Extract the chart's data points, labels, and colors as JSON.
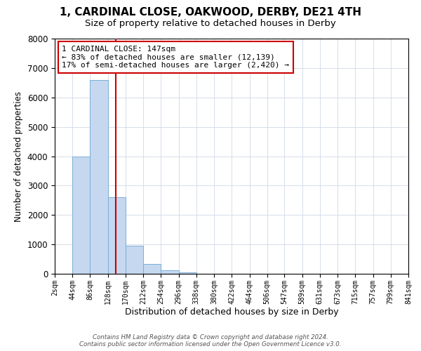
{
  "title": "1, CARDINAL CLOSE, OAKWOOD, DERBY, DE21 4TH",
  "subtitle": "Size of property relative to detached houses in Derby",
  "xlabel": "Distribution of detached houses by size in Derby",
  "ylabel": "Number of detached properties",
  "bin_edges": [
    2,
    44,
    86,
    128,
    170,
    212,
    254,
    296,
    338,
    380,
    422,
    464,
    506,
    547,
    589,
    631,
    673,
    715,
    757,
    799,
    841
  ],
  "bar_heights": [
    0,
    4000,
    6600,
    2600,
    950,
    325,
    120,
    50,
    0,
    0,
    0,
    0,
    0,
    0,
    0,
    0,
    0,
    0,
    0,
    0
  ],
  "bar_color": "#c5d8f0",
  "bar_edge_color": "#7aadd4",
  "vline_x": 147,
  "vline_color": "#cc0000",
  "ylim": [
    0,
    8000
  ],
  "annotation_title": "1 CARDINAL CLOSE: 147sqm",
  "annotation_line1": "← 83% of detached houses are smaller (12,139)",
  "annotation_line2": "17% of semi-detached houses are larger (2,420) →",
  "annotation_box_color": "#cc0000",
  "tick_labels": [
    "2sqm",
    "44sqm",
    "86sqm",
    "128sqm",
    "170sqm",
    "212sqm",
    "254sqm",
    "296sqm",
    "338sqm",
    "380sqm",
    "422sqm",
    "464sqm",
    "506sqm",
    "547sqm",
    "589sqm",
    "631sqm",
    "673sqm",
    "715sqm",
    "757sqm",
    "799sqm",
    "841sqm"
  ],
  "footer_line1": "Contains HM Land Registry data © Crown copyright and database right 2024.",
  "footer_line2": "Contains public sector information licensed under the Open Government Licence v3.0.",
  "background_color": "#ffffff",
  "grid_color": "#d0d8e8",
  "title_fontsize": 11,
  "subtitle_fontsize": 9.5,
  "axis_label_fontsize": 9,
  "tick_fontsize": 7,
  "ylabel_fontsize": 8.5
}
